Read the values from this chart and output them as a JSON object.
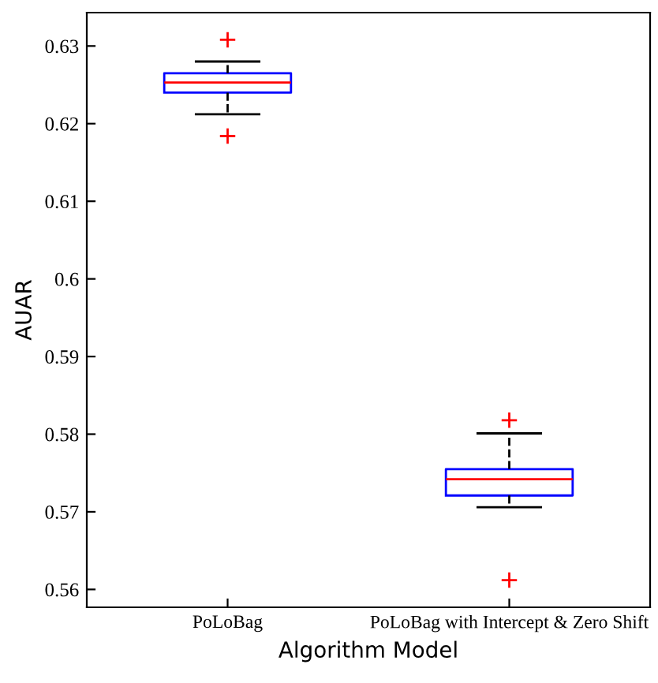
{
  "chart_data": {
    "type": "box",
    "xlabel": "Algorithm Model",
    "ylabel": "AUAR",
    "categories": [
      "PoLoBag",
      "PoLoBag with Intercept & Zero Shift"
    ],
    "boxes": [
      {
        "low": 0.6212,
        "q1": 0.624,
        "median": 0.6253,
        "q3": 0.6265,
        "high": 0.628,
        "outliers": [
          0.6308,
          0.6184
        ]
      },
      {
        "low": 0.5706,
        "q1": 0.5721,
        "median": 0.5742,
        "q3": 0.5755,
        "high": 0.5801,
        "outliers": [
          0.5818,
          0.5612
        ]
      }
    ],
    "color": "#0000ff",
    "ylim": [
      0.5577,
      0.6343
    ],
    "yticks": [
      0.56,
      0.57,
      0.58,
      0.59,
      0.6,
      0.61,
      0.62,
      0.63
    ],
    "grid": false,
    "legend": false
  }
}
